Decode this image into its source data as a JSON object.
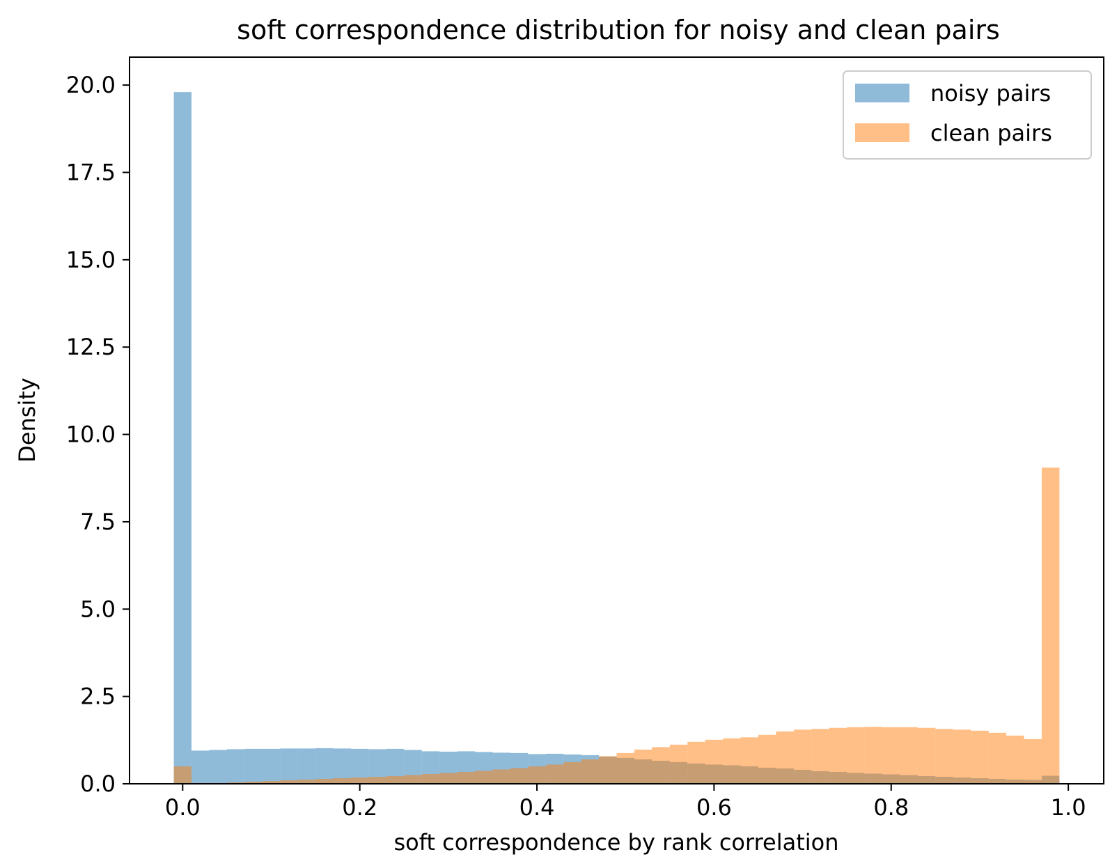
{
  "chart_data": {
    "type": "histogram",
    "title": "soft correspondence distribution for noisy and clean pairs",
    "xlabel": "soft correspondence by rank correlation",
    "ylabel": "Density",
    "xlim": [
      -0.06,
      1.04
    ],
    "ylim": [
      0,
      20.8
    ],
    "xticks": [
      "0.0",
      "0.2",
      "0.4",
      "0.6",
      "0.8",
      "1.0"
    ],
    "yticks": [
      "0.0",
      "2.5",
      "5.0",
      "7.5",
      "10.0",
      "12.5",
      "15.0",
      "17.5",
      "20.0"
    ],
    "grid": false,
    "legend_position": "top-right",
    "bin_edges": [
      -0.01,
      0.01,
      0.03,
      0.05,
      0.07,
      0.09,
      0.11,
      0.13,
      0.15,
      0.17,
      0.19,
      0.21,
      0.23,
      0.25,
      0.27,
      0.29,
      0.31,
      0.33,
      0.35,
      0.37,
      0.39,
      0.41,
      0.43,
      0.45,
      0.47,
      0.49,
      0.51,
      0.53,
      0.55,
      0.57,
      0.59,
      0.61,
      0.63,
      0.65,
      0.67,
      0.69,
      0.71,
      0.73,
      0.75,
      0.77,
      0.79,
      0.81,
      0.83,
      0.85,
      0.87,
      0.89,
      0.91,
      0.93,
      0.95,
      0.97,
      0.99
    ],
    "series": [
      {
        "name": "noisy pairs",
        "color": "#1f77b4",
        "opacity": 0.5,
        "values": [
          19.8,
          0.95,
          0.97,
          0.99,
          1.0,
          1.0,
          1.01,
          1.01,
          1.02,
          1.01,
          1.0,
          0.99,
          1.0,
          0.97,
          0.93,
          0.92,
          0.93,
          0.91,
          0.89,
          0.88,
          0.85,
          0.86,
          0.84,
          0.82,
          0.78,
          0.74,
          0.7,
          0.66,
          0.62,
          0.58,
          0.55,
          0.53,
          0.5,
          0.46,
          0.44,
          0.4,
          0.36,
          0.34,
          0.31,
          0.29,
          0.27,
          0.25,
          0.22,
          0.2,
          0.18,
          0.16,
          0.14,
          0.12,
          0.11,
          0.23
        ]
      },
      {
        "name": "clean pairs",
        "color": "#ff7f0e",
        "opacity": 0.5,
        "values": [
          0.5,
          0.0,
          0.02,
          0.04,
          0.06,
          0.08,
          0.1,
          0.12,
          0.14,
          0.16,
          0.18,
          0.2,
          0.22,
          0.25,
          0.28,
          0.31,
          0.34,
          0.37,
          0.41,
          0.45,
          0.5,
          0.55,
          0.62,
          0.7,
          0.79,
          0.88,
          0.98,
          1.05,
          1.12,
          1.2,
          1.26,
          1.3,
          1.33,
          1.4,
          1.5,
          1.55,
          1.57,
          1.6,
          1.62,
          1.63,
          1.62,
          1.62,
          1.6,
          1.57,
          1.55,
          1.52,
          1.46,
          1.38,
          1.28,
          9.05
        ]
      }
    ]
  }
}
